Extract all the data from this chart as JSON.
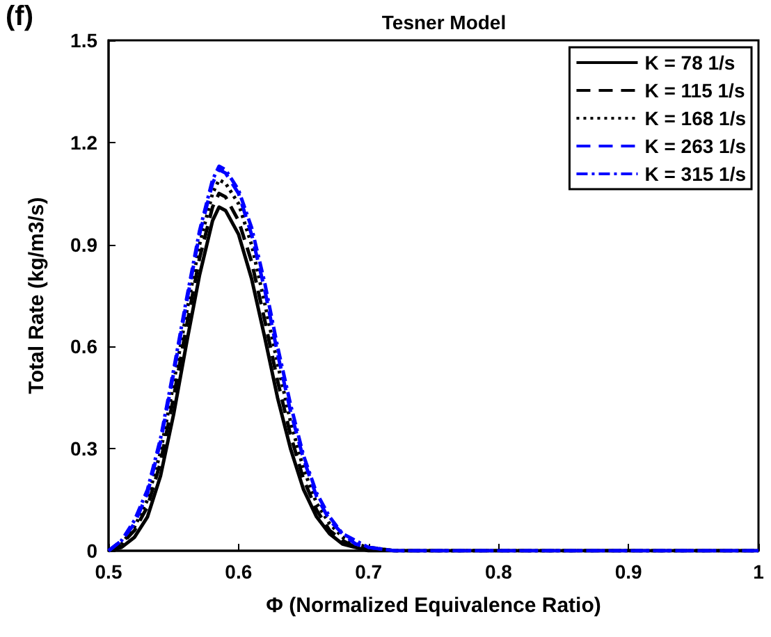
{
  "chart_data": {
    "type": "line",
    "title": "Tesner Model",
    "xlabel": "Φ (Normalized Equivalence Ratio)",
    "ylabel": "Total Rate (kg/m3/s)",
    "annotations": [
      "(f)"
    ],
    "x": [
      0.5,
      0.51,
      0.52,
      0.53,
      0.54,
      0.55,
      0.56,
      0.57,
      0.58,
      0.585,
      0.59,
      0.6,
      0.61,
      0.62,
      0.63,
      0.64,
      0.65,
      0.66,
      0.67,
      0.68,
      0.69,
      0.7,
      0.72,
      0.8,
      0.9,
      1.0
    ],
    "series": [
      {
        "name": "K = 78 1/s",
        "color": "#000000",
        "line_style": "solid",
        "values": [
          0,
          0.01,
          0.04,
          0.1,
          0.22,
          0.4,
          0.61,
          0.81,
          0.97,
          1.01,
          1.0,
          0.93,
          0.8,
          0.63,
          0.45,
          0.3,
          0.18,
          0.1,
          0.05,
          0.02,
          0.01,
          0,
          0,
          0,
          0,
          0
        ]
      },
      {
        "name": "K = 115 1/s",
        "color": "#000000",
        "line_style": "dashed",
        "values": [
          0,
          0.02,
          0.06,
          0.13,
          0.26,
          0.45,
          0.66,
          0.86,
          1.01,
          1.05,
          1.04,
          0.97,
          0.85,
          0.68,
          0.5,
          0.34,
          0.21,
          0.12,
          0.06,
          0.03,
          0.01,
          0.01,
          0,
          0,
          0,
          0
        ]
      },
      {
        "name": "K = 168 1/s",
        "color": "#000000",
        "line_style": "dotted",
        "values": [
          0,
          0.02,
          0.07,
          0.15,
          0.29,
          0.49,
          0.7,
          0.9,
          1.05,
          1.09,
          1.08,
          1.02,
          0.9,
          0.73,
          0.55,
          0.38,
          0.24,
          0.14,
          0.08,
          0.04,
          0.02,
          0.01,
          0,
          0,
          0,
          0
        ]
      },
      {
        "name": "K = 263 1/s",
        "color": "#0000ff",
        "line_style": "dashed",
        "values": [
          0,
          0.03,
          0.08,
          0.17,
          0.32,
          0.52,
          0.73,
          0.93,
          1.08,
          1.12,
          1.11,
          1.05,
          0.93,
          0.77,
          0.58,
          0.41,
          0.27,
          0.16,
          0.09,
          0.05,
          0.02,
          0.01,
          0,
          0,
          0,
          0
        ]
      },
      {
        "name": "K = 315 1/s",
        "color": "#0000ff",
        "line_style": "dashdot",
        "values": [
          0,
          0.03,
          0.09,
          0.18,
          0.33,
          0.53,
          0.74,
          0.94,
          1.09,
          1.13,
          1.12,
          1.06,
          0.95,
          0.79,
          0.6,
          0.43,
          0.28,
          0.17,
          0.1,
          0.05,
          0.03,
          0.01,
          0,
          0,
          0,
          0
        ]
      }
    ],
    "xlim": [
      0.5,
      1
    ],
    "xticks": [
      0.5,
      0.6,
      0.7,
      0.8,
      0.9,
      {
        "value": 1,
        "label": "1"
      }
    ],
    "ylim": [
      0,
      1.5
    ],
    "yticks": [
      0,
      0.3,
      0.6,
      0.9,
      1.2,
      1.5
    ],
    "grid": false,
    "legend": "top right",
    "marker": "none"
  }
}
